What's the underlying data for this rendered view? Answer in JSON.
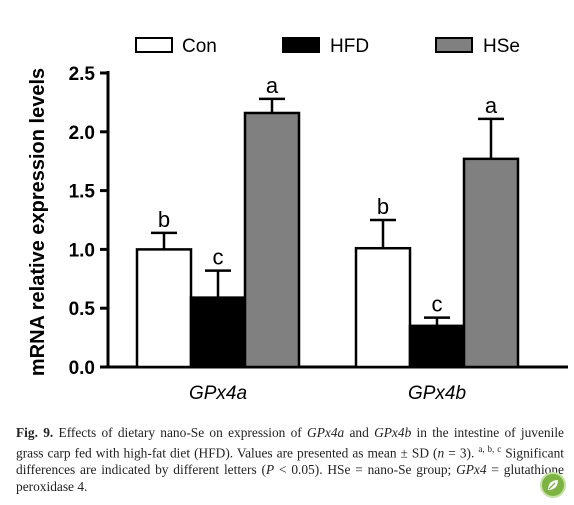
{
  "chart_data": {
    "type": "bar",
    "ylabel": "mRNA relative expression levels",
    "xlabel": "",
    "ylim": [
      0,
      2.5
    ],
    "yticks": [
      "0.0",
      "0.5",
      "1.0",
      "1.5",
      "2.0",
      "2.5"
    ],
    "categories": [
      "GPx4a",
      "GPx4b"
    ],
    "legend_position": "top",
    "series": [
      {
        "name": "Con",
        "color": "#ffffff",
        "values": [
          1.0,
          1.01
        ],
        "sd": [
          0.14,
          0.24
        ],
        "letters": [
          "b",
          "b"
        ]
      },
      {
        "name": "HFD",
        "color": "#000000",
        "values": [
          0.59,
          0.35
        ],
        "sd": [
          0.23,
          0.07
        ],
        "letters": [
          "c",
          "c"
        ]
      },
      {
        "name": "HSe",
        "color": "#808080",
        "values": [
          2.16,
          1.77
        ],
        "sd": [
          0.12,
          0.34
        ],
        "letters": [
          "a",
          "a"
        ]
      }
    ]
  },
  "caption": {
    "fig_label": "Fig. 9.",
    "text_1": " Effects of dietary nano-Se on expression of ",
    "gene_a": "GPx4a",
    "text_2": " and ",
    "gene_b": "GPx4b",
    "text_3": " in the intestine of juvenile grass carp fed with high-fat diet (HFD). Values are presented as mean ± SD (",
    "n_var": "n",
    "text_4": " = 3). ",
    "superscripts": "a, b, c",
    "text_5": " Significant differences are indicated by different letters (",
    "p_var": "P",
    "text_6": " < 0.05). HSe = nano-Se group; ",
    "gene_c": "GPx4",
    "text_7": " = glutathione peroxidase 4."
  }
}
